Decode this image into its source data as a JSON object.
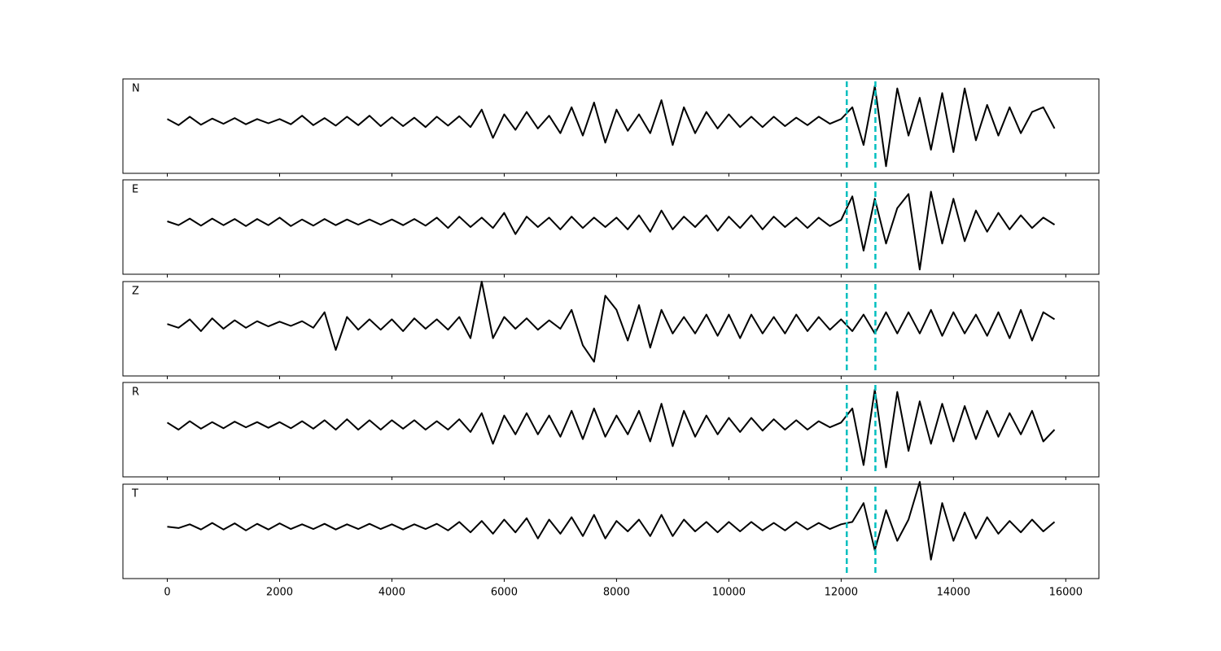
{
  "chart_data": {
    "type": "line",
    "x": [
      0,
      200,
      400,
      600,
      800,
      1000,
      1200,
      1400,
      1600,
      1800,
      2000,
      2200,
      2400,
      2600,
      2800,
      3000,
      3200,
      3400,
      3600,
      3800,
      4000,
      4200,
      4400,
      4600,
      4800,
      5000,
      5200,
      5400,
      5600,
      5800,
      6000,
      6200,
      6400,
      6600,
      6800,
      7000,
      7200,
      7400,
      7600,
      7800,
      8000,
      8200,
      8400,
      8600,
      8800,
      9000,
      9200,
      9400,
      9600,
      9800,
      10000,
      10200,
      10400,
      10600,
      10800,
      11000,
      11200,
      11400,
      11600,
      11800,
      12000,
      12200,
      12400,
      12600,
      12800,
      13000,
      13200,
      13400,
      13600,
      13800,
      14000,
      14200,
      14400,
      14600,
      14800,
      15000,
      15200,
      15400,
      15600,
      15800
    ],
    "series": [
      {
        "name": "N",
        "color": "#000000",
        "values": [
          0.05,
          -0.08,
          0.1,
          -0.07,
          0.06,
          -0.05,
          0.07,
          -0.06,
          0.05,
          -0.04,
          0.05,
          -0.06,
          0.12,
          -0.08,
          0.07,
          -0.09,
          0.1,
          -0.08,
          0.12,
          -0.1,
          0.09,
          -0.1,
          0.08,
          -0.12,
          0.1,
          -0.09,
          0.11,
          -0.12,
          0.25,
          -0.35,
          0.15,
          -0.18,
          0.2,
          -0.15,
          0.12,
          -0.25,
          0.3,
          -0.3,
          0.4,
          -0.45,
          0.25,
          -0.2,
          0.15,
          -0.25,
          0.45,
          -0.5,
          0.3,
          -0.25,
          0.2,
          -0.15,
          0.15,
          -0.12,
          0.1,
          -0.12,
          0.1,
          -0.1,
          0.08,
          -0.08,
          0.1,
          -0.05,
          0.05,
          0.3,
          -0.5,
          0.75,
          -0.95,
          0.7,
          -0.3,
          0.5,
          -0.6,
          0.6,
          -0.65,
          0.7,
          -0.4,
          0.35,
          -0.3,
          0.3,
          -0.25,
          0.2,
          0.3,
          -0.15
        ]
      },
      {
        "name": "E",
        "color": "#000000",
        "values": [
          0.02,
          -0.06,
          0.08,
          -0.07,
          0.08,
          -0.06,
          0.07,
          -0.08,
          0.07,
          -0.06,
          0.1,
          -0.08,
          0.06,
          -0.07,
          0.07,
          -0.06,
          0.06,
          -0.05,
          0.06,
          -0.05,
          0.06,
          -0.06,
          0.07,
          -0.07,
          0.1,
          -0.12,
          0.12,
          -0.1,
          0.1,
          -0.12,
          0.2,
          -0.25,
          0.12,
          -0.1,
          0.1,
          -0.15,
          0.12,
          -0.12,
          0.1,
          -0.1,
          0.1,
          -0.15,
          0.15,
          -0.2,
          0.25,
          -0.15,
          0.12,
          -0.1,
          0.15,
          -0.18,
          0.12,
          -0.12,
          0.15,
          -0.15,
          0.12,
          -0.1,
          0.1,
          -0.12,
          0.1,
          -0.08,
          0.05,
          0.55,
          -0.6,
          0.5,
          -0.45,
          0.3,
          0.6,
          -1.0,
          0.65,
          -0.45,
          0.5,
          -0.4,
          0.25,
          -0.2,
          0.2,
          -0.15,
          0.15,
          -0.12,
          0.1,
          -0.05
        ]
      },
      {
        "name": "Z",
        "color": "#000000",
        "values": [
          0.0,
          -0.08,
          0.1,
          -0.15,
          0.12,
          -0.1,
          0.08,
          -0.08,
          0.06,
          -0.05,
          0.05,
          -0.04,
          0.06,
          -0.08,
          0.25,
          -0.55,
          0.15,
          -0.12,
          0.1,
          -0.12,
          0.1,
          -0.15,
          0.12,
          -0.1,
          0.1,
          -0.12,
          0.15,
          -0.3,
          0.9,
          -0.3,
          0.15,
          -0.1,
          0.12,
          -0.12,
          0.08,
          -0.1,
          0.3,
          -0.45,
          -0.8,
          0.6,
          0.3,
          -0.35,
          0.4,
          -0.5,
          0.3,
          -0.2,
          0.15,
          -0.2,
          0.2,
          -0.25,
          0.2,
          -0.3,
          0.2,
          -0.2,
          0.15,
          -0.2,
          0.2,
          -0.15,
          0.15,
          -0.12,
          0.1,
          -0.15,
          0.2,
          -0.2,
          0.25,
          -0.2,
          0.25,
          -0.2,
          0.3,
          -0.25,
          0.25,
          -0.2,
          0.2,
          -0.25,
          0.25,
          -0.3,
          0.3,
          -0.35,
          0.25,
          0.1
        ]
      },
      {
        "name": "R",
        "color": "#000000",
        "values": [
          0.05,
          -0.1,
          0.08,
          -0.08,
          0.06,
          -0.07,
          0.07,
          -0.05,
          0.06,
          -0.06,
          0.06,
          -0.07,
          0.08,
          -0.08,
          0.1,
          -0.1,
          0.12,
          -0.1,
          0.1,
          -0.1,
          0.1,
          -0.08,
          0.1,
          -0.1,
          0.08,
          -0.1,
          0.12,
          -0.15,
          0.25,
          -0.4,
          0.2,
          -0.2,
          0.25,
          -0.2,
          0.2,
          -0.25,
          0.3,
          -0.3,
          0.35,
          -0.25,
          0.2,
          -0.2,
          0.3,
          -0.35,
          0.45,
          -0.45,
          0.3,
          -0.25,
          0.2,
          -0.2,
          0.15,
          -0.15,
          0.15,
          -0.12,
          0.12,
          -0.1,
          0.1,
          -0.1,
          0.08,
          -0.05,
          0.05,
          0.35,
          -0.85,
          0.75,
          -0.9,
          0.7,
          -0.55,
          0.5,
          -0.4,
          0.45,
          -0.35,
          0.4,
          -0.3,
          0.3,
          -0.25,
          0.25,
          -0.2,
          0.3,
          -0.35,
          -0.1
        ]
      },
      {
        "name": "T",
        "color": "#000000",
        "values": [
          0.0,
          -0.03,
          0.05,
          -0.06,
          0.08,
          -0.06,
          0.07,
          -0.08,
          0.06,
          -0.06,
          0.07,
          -0.05,
          0.05,
          -0.05,
          0.06,
          -0.06,
          0.05,
          -0.05,
          0.06,
          -0.05,
          0.05,
          -0.06,
          0.05,
          -0.05,
          0.06,
          -0.08,
          0.1,
          -0.12,
          0.12,
          -0.15,
          0.15,
          -0.12,
          0.18,
          -0.25,
          0.15,
          -0.15,
          0.2,
          -0.2,
          0.25,
          -0.25,
          0.12,
          -0.1,
          0.15,
          -0.2,
          0.25,
          -0.2,
          0.15,
          -0.1,
          0.1,
          -0.12,
          0.1,
          -0.1,
          0.1,
          -0.08,
          0.08,
          -0.08,
          0.1,
          -0.06,
          0.08,
          -0.05,
          0.05,
          0.1,
          0.5,
          -0.5,
          0.35,
          -0.3,
          0.15,
          0.95,
          -0.7,
          0.5,
          -0.3,
          0.3,
          -0.25,
          0.2,
          -0.15,
          0.12,
          -0.12,
          0.15,
          -0.1,
          0.1
        ]
      }
    ],
    "vlines": [
      12100,
      12610
    ],
    "vline_color": "#00bfbf",
    "xlim": [
      -790,
      16590
    ],
    "xticks": [
      0,
      2000,
      4000,
      6000,
      8000,
      10000,
      12000,
      14000,
      16000
    ],
    "ylim": [
      -1.1,
      0.9
    ]
  }
}
